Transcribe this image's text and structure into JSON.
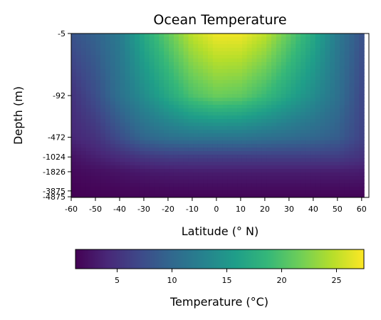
{
  "chart_data": {
    "type": "heatmap",
    "title": "Ocean Temperature",
    "xlabel": "Latitude (° N)",
    "ylabel": "Depth (m)",
    "x_ticks": [
      -60,
      -50,
      -40,
      -30,
      -20,
      -10,
      0,
      10,
      20,
      30,
      40,
      50,
      60
    ],
    "xlim": [
      -60,
      63
    ],
    "y_ticks": [
      -5,
      -92,
      -472,
      -1024,
      -1826,
      -3875,
      -4875
    ],
    "y_scale": "asinh",
    "ylim": [
      -5,
      -5000
    ],
    "data_latitude_range": [
      -60,
      61
    ],
    "colormap": "viridis",
    "colormap_stops": [
      "#440154",
      "#482878",
      "#3e4989",
      "#31688e",
      "#26828e",
      "#1f9e89",
      "#35b779",
      "#6ece58",
      "#b5de2b",
      "#fde725"
    ],
    "colorbar": {
      "label": "Temperature (°C)",
      "range": [
        1.2,
        27.5
      ],
      "ticks": [
        5,
        10,
        15,
        20,
        25
      ],
      "orientation": "horizontal",
      "position": "bottom"
    },
    "grid": false,
    "temperature_grid": {
      "latitudes": [
        -60,
        -50,
        -40,
        -30,
        -20,
        -10,
        0,
        10,
        20,
        30,
        40,
        50,
        60
      ],
      "depths": [
        -5,
        -92,
        -472,
        -1024,
        -1826,
        -3875,
        -4875
      ],
      "values": [
        [
          8.0,
          9.5,
          12.0,
          17.0,
          21.0,
          25.0,
          27.0,
          27.0,
          25.0,
          21.0,
          17.0,
          12.0,
          8.0
        ],
        [
          5.0,
          7.5,
          11.0,
          14.0,
          17.0,
          20.0,
          21.5,
          21.0,
          19.0,
          16.5,
          14.0,
          11.0,
          7.0
        ],
        [
          4.0,
          5.0,
          7.5,
          10.0,
          11.0,
          11.5,
          11.5,
          11.5,
          11.0,
          10.5,
          10.0,
          9.0,
          6.5
        ],
        [
          2.5,
          3.5,
          4.5,
          5.5,
          6.0,
          6.0,
          6.0,
          6.0,
          6.0,
          6.0,
          6.0,
          6.0,
          5.0
        ],
        [
          1.8,
          2.2,
          2.6,
          3.0,
          3.2,
          3.3,
          3.3,
          3.3,
          3.3,
          3.3,
          3.3,
          3.3,
          3.2
        ],
        [
          1.3,
          1.5,
          1.6,
          1.7,
          1.8,
          1.8,
          1.8,
          1.8,
          1.8,
          1.8,
          1.8,
          1.8,
          1.8
        ],
        [
          1.2,
          1.3,
          1.4,
          1.5,
          1.5,
          1.5,
          1.5,
          1.5,
          1.5,
          1.5,
          1.5,
          1.5,
          1.5
        ]
      ]
    }
  }
}
